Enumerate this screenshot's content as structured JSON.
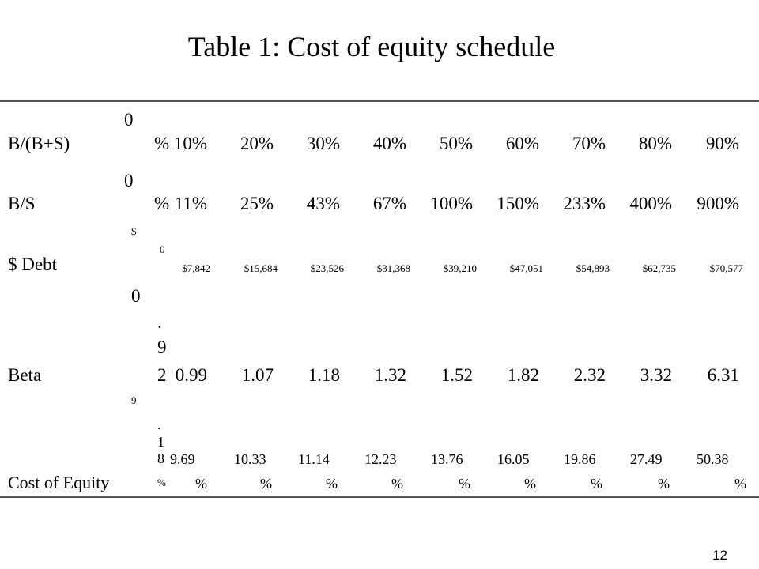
{
  "title": "Table 1: Cost of equity schedule",
  "rows": [
    {
      "label": "B/(B+S)",
      "stub_top": "0",
      "stub_bottom": "%",
      "values": [
        "10%",
        "20%",
        "30%",
        "40%",
        "50%",
        "60%",
        "70%",
        "80%",
        "90%"
      ]
    },
    {
      "label": "B/S",
      "stub_top": "0",
      "stub_bottom": "%",
      "values": [
        "11%",
        "25%",
        "43%",
        "67%",
        "100%",
        "150%",
        "233%",
        "400%",
        "900%"
      ]
    },
    {
      "label": "$ Debt",
      "stub_top": "$",
      "stub_mid": "0",
      "values": [
        "$7,842",
        "$15,684",
        "$23,526",
        "$31,368",
        "$39,210",
        "$47,051",
        "$54,893",
        "$62,735",
        "$70,577"
      ]
    },
    {
      "label": "Beta",
      "stub_top": "0",
      "stub_stack": [
        ".",
        "9"
      ],
      "stub_lead": "2",
      "values": [
        "0.99",
        "1.07",
        "1.18",
        "1.32",
        "1.52",
        "1.82",
        "2.32",
        "3.32",
        "6.31"
      ]
    },
    {
      "label": "Cost of Equity",
      "stub_top": "9",
      "stub_stack": [
        ".",
        "1",
        "8"
      ],
      "stub_bottom": "%",
      "values": [
        "9.69",
        "10.33",
        "11.14",
        "12.23",
        "13.76",
        "16.05",
        "19.86",
        "27.49",
        "50.38"
      ],
      "units": [
        "%",
        "%",
        "%",
        "%",
        "%",
        "%",
        "%",
        "%",
        "%"
      ]
    }
  ],
  "page_number": "12"
}
